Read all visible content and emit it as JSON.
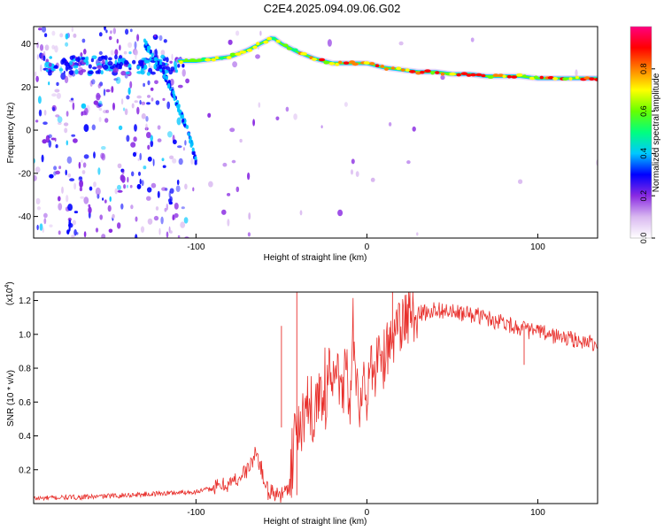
{
  "figure": {
    "title": "C2E4.2025.094.09.06.G02"
  },
  "chart_data": [
    {
      "type": "heatmap",
      "xlabel": "Height of straight line (km)",
      "ylabel": "Frequency (Hz)",
      "xlim": [
        -195,
        135
      ],
      "ylim": [
        -50,
        48
      ],
      "xticks": [
        -100,
        0,
        100
      ],
      "yticks": [
        -40,
        -20,
        0,
        20,
        40
      ],
      "colorbar": {
        "label": "Normalized spectral amplitude",
        "range": [
          0,
          1
        ],
        "ticks": [
          "0.0",
          "0.2",
          "0.4",
          "0.6",
          "0.8"
        ],
        "tick_values": [
          0.0,
          0.2,
          0.4,
          0.6,
          0.8
        ],
        "colors": [
          "#ffffff",
          "#d9b8f0",
          "#8a2be2",
          "#0000ff",
          "#00c8ff",
          "#00ff7f",
          "#66ff00",
          "#ffff00",
          "#ff8000",
          "#ff0000",
          "#ff0080"
        ]
      },
      "ridge": {
        "x": [
          -110,
          -100,
          -90,
          -80,
          -70,
          -60,
          -55,
          -50,
          -40,
          -30,
          -20,
          -10,
          0,
          10,
          20,
          30,
          40,
          50,
          60,
          70,
          80,
          90,
          100,
          110,
          120,
          135
        ],
        "y": [
          32,
          32,
          33,
          34,
          37,
          41,
          43,
          40,
          36,
          33,
          31,
          31,
          31,
          29,
          28,
          27,
          27,
          26,
          26,
          25,
          25,
          25,
          24,
          24,
          24,
          24
        ]
      },
      "diagonal_track": {
        "x": [
          -130,
          -125,
          -120,
          -115,
          -110,
          -105,
          -102,
          -100
        ],
        "y": [
          40,
          35,
          28,
          20,
          10,
          0,
          -8,
          -15
        ]
      },
      "grid": false,
      "legend": "right"
    },
    {
      "type": "line",
      "xlabel": "Height of straight line (km)",
      "ylabel": "SNR (10 * v/v)",
      "y_multiplier": "(x10",
      "y_exponent": "4",
      "xlim": [
        -195,
        135
      ],
      "ylim": [
        0,
        1.25
      ],
      "xticks": [
        -100,
        0,
        100
      ],
      "yticks": [
        "0.2",
        "0.4",
        "0.6",
        "0.8",
        "1.0",
        "1.2"
      ],
      "ytick_values": [
        0.2,
        0.4,
        0.6,
        0.8,
        1.0,
        1.2
      ],
      "grid": false,
      "series": [
        {
          "color": "#e8302c",
          "x": [
            -195,
            -180,
            -160,
            -140,
            -120,
            -100,
            -90,
            -80,
            -75,
            -70,
            -67,
            -65,
            -62,
            -60,
            -57,
            -55,
            -50,
            -47,
            -45,
            -43,
            -41,
            -40,
            -37,
            -35,
            -32,
            -30,
            -27,
            -25,
            -22,
            -20,
            -17,
            -15,
            -12,
            -10,
            -8,
            -6,
            -4,
            -2,
            0,
            2,
            4,
            6,
            8,
            10,
            12,
            15,
            18,
            20,
            25,
            30,
            35,
            40,
            45,
            50,
            55,
            60,
            65,
            70,
            75,
            80,
            85,
            90,
            92,
            95,
            100,
            105,
            110,
            115,
            120,
            125,
            130,
            135
          ],
          "y": [
            0.03,
            0.035,
            0.04,
            0.05,
            0.06,
            0.07,
            0.09,
            0.12,
            0.15,
            0.2,
            0.25,
            0.3,
            0.22,
            0.12,
            0.08,
            0.06,
            0.05,
            0.08,
            0.12,
            0.3,
            0.55,
            0.4,
            0.5,
            0.62,
            0.45,
            0.6,
            0.7,
            0.55,
            0.75,
            0.65,
            0.8,
            0.6,
            0.85,
            0.55,
            0.9,
            0.7,
            0.5,
            0.75,
            0.65,
            0.8,
            0.72,
            0.85,
            0.9,
            0.85,
            0.92,
            0.98,
            1.0,
            1.05,
            1.1,
            1.12,
            1.13,
            1.15,
            1.14,
            1.13,
            1.12,
            1.12,
            1.11,
            1.1,
            1.08,
            1.08,
            1.05,
            1.04,
            1.03,
            1.02,
            1.02,
            1.0,
            0.99,
            0.98,
            0.97,
            0.96,
            0.95,
            0.95
          ]
        }
      ]
    }
  ]
}
